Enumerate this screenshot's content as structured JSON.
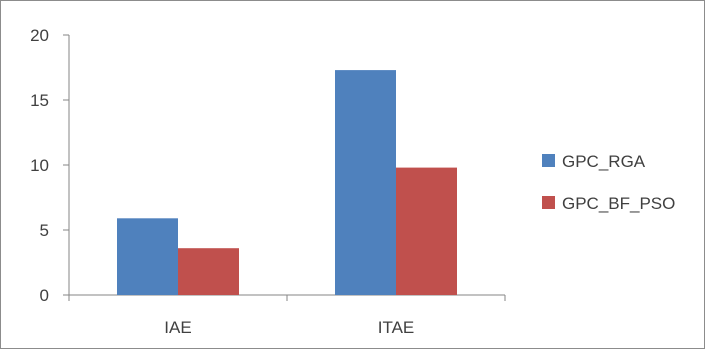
{
  "chart_data": {
    "type": "bar",
    "categories": [
      "IAE",
      "ITAE"
    ],
    "series": [
      {
        "name": "GPC_RGA",
        "values": [
          5.9,
          17.3
        ],
        "color": "#4f81bd"
      },
      {
        "name": "GPC_BF_PSO",
        "values": [
          3.6,
          9.8
        ],
        "color": "#c0504d"
      }
    ],
    "ylim": [
      0,
      20
    ],
    "yticks": [
      0,
      5,
      10,
      15,
      20
    ],
    "xlabel": "",
    "ylabel": "",
    "title": "",
    "grid": false,
    "legend_position": "right"
  }
}
